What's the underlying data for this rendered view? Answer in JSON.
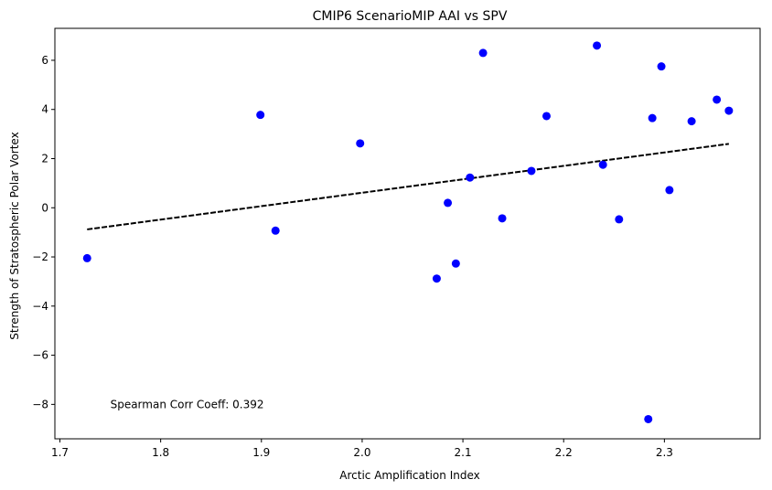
{
  "chart_data": {
    "type": "scatter",
    "title": "CMIP6 ScenarioMIP AAI vs SPV",
    "xlabel": "Arctic Amplification Index",
    "ylabel": "Strength of Stratospheric Polar Vortex",
    "xlim": [
      1.695,
      2.395
    ],
    "ylim": [
      -9.4,
      7.3
    ],
    "xticks": [
      1.7,
      1.8,
      1.9,
      2.0,
      2.1,
      2.2,
      2.3
    ],
    "xtick_labels": [
      "1.7",
      "1.8",
      "1.9",
      "2.0",
      "2.1",
      "2.2",
      "2.3"
    ],
    "yticks": [
      -8,
      -6,
      -4,
      -2,
      0,
      2,
      4,
      6
    ],
    "ytick_labels": [
      "−8",
      "−6",
      "−4",
      "−2",
      "0",
      "2",
      "4",
      "6"
    ],
    "grid": false,
    "points": {
      "color": "#0000ff",
      "x": [
        1.727,
        1.899,
        1.914,
        1.998,
        2.074,
        2.085,
        2.093,
        2.107,
        2.12,
        2.139,
        2.168,
        2.183,
        2.233,
        2.239,
        2.255,
        2.284,
        2.288,
        2.297,
        2.305,
        2.327,
        2.352,
        2.364
      ],
      "y": [
        -2.05,
        3.78,
        -0.93,
        2.62,
        -2.88,
        0.2,
        -2.27,
        1.23,
        6.3,
        -0.43,
        1.5,
        3.73,
        6.6,
        1.75,
        -0.47,
        -8.6,
        3.65,
        5.75,
        0.72,
        3.52,
        4.4,
        3.95
      ]
    },
    "fit_line": {
      "color": "#000000",
      "style": "dashed",
      "x": [
        1.727,
        2.364
      ],
      "y": [
        -0.88,
        2.6
      ]
    },
    "annotation": {
      "text": "Spearman Corr Coeff: 0.392",
      "x": 1.75,
      "y": -8.0
    }
  }
}
